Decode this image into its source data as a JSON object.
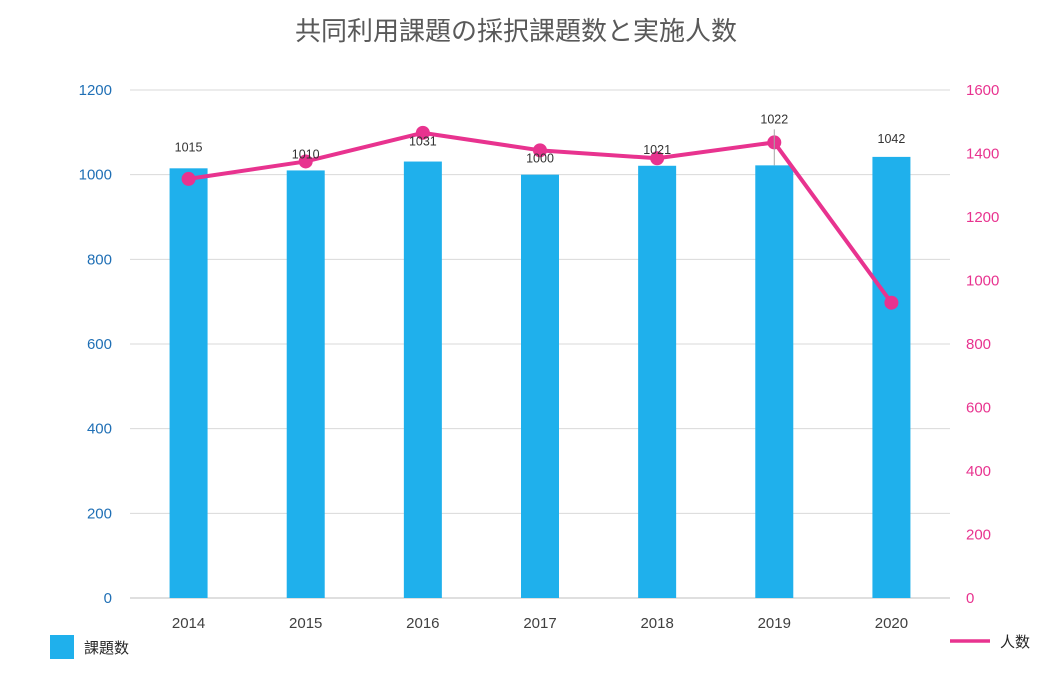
{
  "chart_data": {
    "type": "bar",
    "title": "共同利用課題の採択課題数と実施人数",
    "categories": [
      "2014",
      "2015",
      "2016",
      "2017",
      "2018",
      "2019",
      "2020"
    ],
    "series": [
      {
        "name": "課題数",
        "type": "bar",
        "axis": "left",
        "values": [
          1015,
          1010,
          1031,
          1000,
          1021,
          1022,
          1042
        ],
        "labels": [
          "1015",
          "1010",
          "1031",
          "1000",
          "1021",
          "1022",
          "1042"
        ],
        "color": "#1fb0ec"
      },
      {
        "name": "人数",
        "type": "line",
        "axis": "right",
        "values": [
          1320,
          1375,
          1465,
          1410,
          1385,
          1435,
          930
        ],
        "color": "#e8338f"
      }
    ],
    "y_left": {
      "range": [
        0,
        1200
      ],
      "ticks": [
        "0",
        "200",
        "400",
        "600",
        "800",
        "1000",
        "1200"
      ],
      "color": "#1f6fb5"
    },
    "y_right": {
      "range": [
        0,
        1600
      ],
      "ticks": [
        "0",
        "200",
        "400",
        "600",
        "800",
        "1000",
        "1200",
        "1400",
        "1600"
      ],
      "color": "#e8338f"
    },
    "xlabel": "",
    "ylabel": "",
    "grid": true,
    "legend": {
      "bar_position": "bottom-left",
      "line_position": "bottom-right"
    }
  }
}
